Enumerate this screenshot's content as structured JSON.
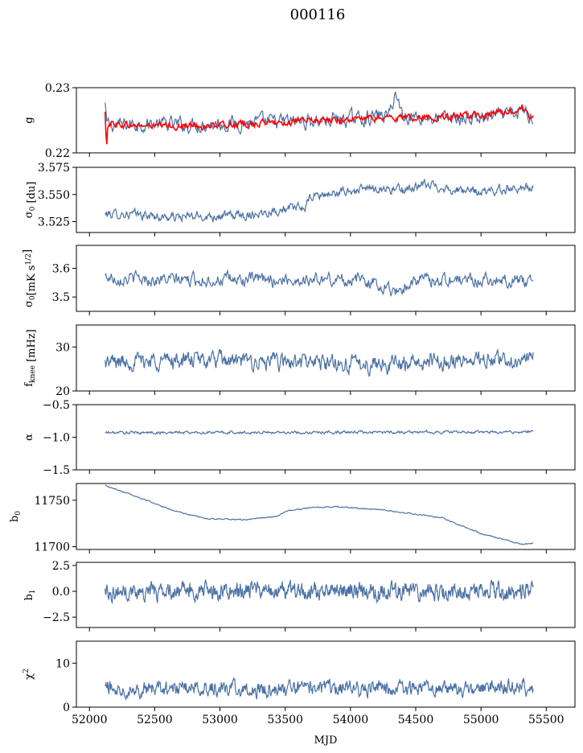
{
  "title": "000116",
  "xlabel": "MJD",
  "colors": {
    "series": "#4c72a4",
    "fit": "#ff0000",
    "frame": "#000000"
  },
  "x_axis": {
    "range": [
      51900,
      55720
    ],
    "ticks": [
      52000,
      52500,
      53000,
      53500,
      54000,
      54500,
      55000,
      55500
    ],
    "tick_labels": [
      "52000",
      "52500",
      "53000",
      "53500",
      "54000",
      "54500",
      "55000",
      "55500"
    ]
  },
  "chart_data": [
    {
      "type": "line",
      "name": "gain",
      "ylabel": "g",
      "ylim": [
        0.22,
        0.23
      ],
      "yticks": [
        0.22,
        0.23
      ],
      "ytick_labels": [
        "0.22",
        "0.23"
      ],
      "x_range": [
        52120,
        55400
      ],
      "n_points": 520,
      "series": [
        {
          "name": "",
          "color": "#4c72a4",
          "anchors": [
            [
              52120,
              0.2275
            ],
            [
              52130,
              0.2243
            ],
            [
              52200,
              0.2242
            ],
            [
              52400,
              0.2245
            ],
            [
              52700,
              0.2243
            ],
            [
              53000,
              0.2245
            ],
            [
              53300,
              0.2247
            ],
            [
              53600,
              0.2248
            ],
            [
              54000,
              0.2252
            ],
            [
              54300,
              0.2258
            ],
            [
              54340,
              0.2293
            ],
            [
              54400,
              0.2258
            ],
            [
              54700,
              0.2252
            ],
            [
              55000,
              0.2253
            ],
            [
              55250,
              0.2258
            ],
            [
              55330,
              0.2265
            ],
            [
              55400,
              0.2252
            ]
          ],
          "noise": 0.0011
        },
        {
          "name": "",
          "color": "#ff0000",
          "anchors": [
            [
              52110,
              0.2296
            ],
            [
              52120,
              0.2262
            ],
            [
              52130,
              0.2203
            ],
            [
              52140,
              0.2246
            ],
            [
              52300,
              0.2242
            ],
            [
              52700,
              0.2241
            ],
            [
              53000,
              0.2242
            ],
            [
              53300,
              0.2245
            ],
            [
              53700,
              0.2249
            ],
            [
              54200,
              0.2253
            ],
            [
              54600,
              0.2255
            ],
            [
              55000,
              0.2256
            ],
            [
              55320,
              0.2268
            ],
            [
              55400,
              0.2253
            ]
          ],
          "noise": 0.0005
        }
      ]
    },
    {
      "type": "line",
      "name": "sigma0-du",
      "ylabel": "σ0 [du]",
      "ylim": [
        3.515,
        3.575
      ],
      "yticks": [
        3.525,
        3.55,
        3.575
      ],
      "ytick_labels": [
        "3.525",
        "3.550",
        "3.575"
      ],
      "x_range": [
        52120,
        55400
      ],
      "n_points": 620,
      "series": [
        {
          "name": "",
          "color": "#4c72a4",
          "anchors": [
            [
              52120,
              3.532
            ],
            [
              52300,
              3.532
            ],
            [
              52600,
              3.529
            ],
            [
              52900,
              3.53
            ],
            [
              53200,
              3.531
            ],
            [
              53400,
              3.535
            ],
            [
              53650,
              3.538
            ],
            [
              53700,
              3.548
            ],
            [
              54000,
              3.553
            ],
            [
              54200,
              3.556
            ],
            [
              54400,
              3.554
            ],
            [
              54600,
              3.559
            ],
            [
              54800,
              3.554
            ],
            [
              55000,
              3.552
            ],
            [
              55300,
              3.557
            ],
            [
              55400,
              3.556
            ]
          ],
          "noise": 0.004
        }
      ]
    },
    {
      "type": "line",
      "name": "sigma0-mk",
      "ylabel": "σ0[mK s1/2]",
      "ylim": [
        3.45,
        3.68
      ],
      "yticks": [
        3.5,
        3.6
      ],
      "ytick_labels": [
        "3.5",
        "3.6"
      ],
      "x_range": [
        52120,
        55400
      ],
      "n_points": 560,
      "series": [
        {
          "name": "",
          "color": "#4c72a4",
          "anchors": [
            [
              52120,
              3.57
            ],
            [
              52500,
              3.56
            ],
            [
              52900,
              3.56
            ],
            [
              53300,
              3.56
            ],
            [
              53700,
              3.56
            ],
            [
              54100,
              3.56
            ],
            [
              54350,
              3.52
            ],
            [
              54500,
              3.56
            ],
            [
              54900,
              3.56
            ],
            [
              55300,
              3.56
            ],
            [
              55400,
              3.55
            ]
          ],
          "noise": 0.022
        }
      ]
    },
    {
      "type": "line",
      "name": "fknee",
      "ylabel": "fknee [mHz]",
      "ylim": [
        20,
        35
      ],
      "yticks": [
        20,
        30
      ],
      "ytick_labels": [
        "20",
        "30"
      ],
      "x_range": [
        52120,
        55400
      ],
      "n_points": 700,
      "series": [
        {
          "name": "",
          "color": "#4c72a4",
          "anchors": [
            [
              52120,
              26.5
            ],
            [
              52500,
              27
            ],
            [
              52900,
              27
            ],
            [
              53300,
              26.5
            ],
            [
              53700,
              26.5
            ],
            [
              54100,
              26
            ],
            [
              54500,
              26.5
            ],
            [
              54900,
              27
            ],
            [
              55300,
              27
            ],
            [
              55400,
              27.5
            ]
          ],
          "noise": 1.8
        }
      ]
    },
    {
      "type": "line",
      "name": "alpha",
      "ylabel": "α",
      "ylim": [
        -1.5,
        -0.5
      ],
      "yticks": [
        -1.5,
        -1.0,
        -0.5
      ],
      "ytick_labels": [
        "−1.5",
        "−1.0",
        "−0.5"
      ],
      "x_range": [
        52120,
        55400
      ],
      "n_points": 600,
      "series": [
        {
          "name": "",
          "color": "#4c72a4",
          "anchors": [
            [
              52120,
              -0.93
            ],
            [
              55400,
              -0.92
            ]
          ],
          "noise": 0.022
        }
      ]
    },
    {
      "type": "line",
      "name": "b0",
      "ylabel": "b0",
      "ylim": [
        11697,
        11768
      ],
      "yticks": [
        11700,
        11750
      ],
      "ytick_labels": [
        "11700",
        "11750"
      ],
      "x_range": [
        52120,
        55400
      ],
      "n_points": 600,
      "series": [
        {
          "name": "",
          "color": "#4c72a4",
          "anchors": [
            [
              52120,
              11766
            ],
            [
              52200,
              11762
            ],
            [
              52400,
              11752
            ],
            [
              52600,
              11741
            ],
            [
              52720,
              11736
            ],
            [
              52900,
              11730
            ],
            [
              53200,
              11729
            ],
            [
              53450,
              11733
            ],
            [
              53500,
              11738
            ],
            [
              53700,
              11742
            ],
            [
              53900,
              11743
            ],
            [
              54200,
              11740
            ],
            [
              54500,
              11735
            ],
            [
              54700,
              11731
            ],
            [
              55000,
              11714
            ],
            [
              55200,
              11707
            ],
            [
              55330,
              11702
            ],
            [
              55400,
              11704
            ]
          ],
          "noise": 0.6
        }
      ]
    },
    {
      "type": "line",
      "name": "b1",
      "ylabel": "b1",
      "ylim": [
        -3.5,
        2.8
      ],
      "yticks": [
        -2.5,
        0.0,
        2.5
      ],
      "ytick_labels": [
        "−2.5",
        "0.0",
        "2.5"
      ],
      "x_range": [
        52120,
        55400
      ],
      "n_points": 900,
      "series": [
        {
          "name": "",
          "color": "#4c72a4",
          "anchors": [
            [
              52120,
              0
            ],
            [
              55400,
              0
            ]
          ],
          "noise": 0.75
        }
      ]
    },
    {
      "type": "line",
      "name": "chi2",
      "ylabel": "χ2",
      "ylim": [
        0,
        15
      ],
      "yticks": [
        0,
        10
      ],
      "ytick_labels": [
        "0",
        "10"
      ],
      "x_range": [
        52120,
        55400
      ],
      "n_points": 800,
      "series": [
        {
          "name": "",
          "color": "#4c72a4",
          "anchors": [
            [
              52120,
              4.5
            ],
            [
              52500,
              4
            ],
            [
              52900,
              4.5
            ],
            [
              53300,
              4
            ],
            [
              53700,
              4.5
            ],
            [
              54100,
              4.2
            ],
            [
              54500,
              4.5
            ],
            [
              54900,
              4
            ],
            [
              55300,
              5
            ],
            [
              55400,
              4
            ]
          ],
          "noise": 1.6
        }
      ]
    }
  ]
}
